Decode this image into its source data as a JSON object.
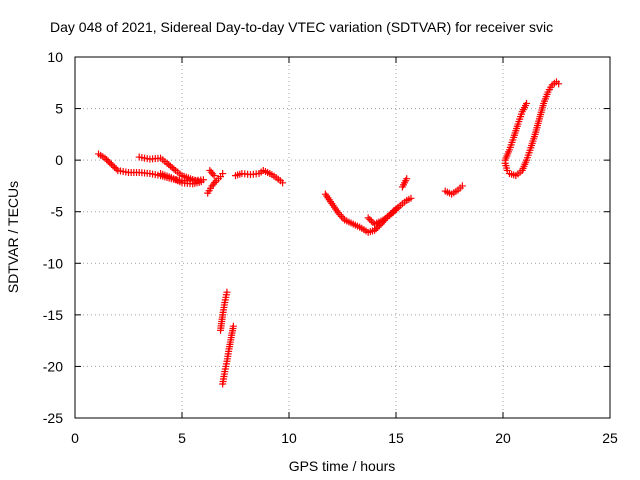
{
  "chart_data": {
    "type": "scatter",
    "title": "Day 048 of 2021, Sidereal Day-to-day VTEC variation (SDTVAR) for receiver svic",
    "xlabel": "GPS time / hours",
    "ylabel": "SDTVAR / TECUs",
    "xlim": [
      0,
      25
    ],
    "ylim": [
      -25,
      10
    ],
    "xticks": [
      "0",
      "5",
      "10",
      "15",
      "20",
      "25"
    ],
    "yticks": [
      "10",
      "5",
      "0",
      "-5",
      "-10",
      "-15",
      "-20",
      "-25"
    ],
    "grid": true,
    "marker": "+",
    "color": "#ff0000",
    "series": [
      {
        "points": [
          [
            1.1,
            0.6
          ],
          [
            1.4,
            0.2
          ],
          [
            1.7,
            -0.4
          ],
          [
            2.0,
            -1.0
          ],
          [
            2.5,
            -1.2
          ],
          [
            3.0,
            -1.2
          ],
          [
            3.5,
            -1.3
          ],
          [
            4.0,
            -1.5
          ],
          [
            4.5,
            -1.8
          ],
          [
            5.0,
            -2.0
          ],
          [
            5.5,
            -2.0
          ],
          [
            6.0,
            -1.9
          ]
        ]
      },
      {
        "points": [
          [
            3.0,
            0.3
          ],
          [
            3.5,
            0.1
          ],
          [
            4.0,
            0.2
          ],
          [
            4.3,
            -0.3
          ],
          [
            4.7,
            -1.0
          ],
          [
            5.0,
            -1.5
          ],
          [
            5.4,
            -1.8
          ],
          [
            5.8,
            -2.1
          ]
        ]
      },
      {
        "points": [
          [
            4.0,
            -1.3
          ],
          [
            4.5,
            -1.7
          ],
          [
            5.0,
            -2.2
          ],
          [
            5.5,
            -2.3
          ],
          [
            5.9,
            -2.1
          ]
        ]
      },
      {
        "points": [
          [
            6.2,
            -3.2
          ],
          [
            6.4,
            -2.5
          ],
          [
            6.6,
            -2.0
          ],
          [
            6.8,
            -1.6
          ],
          [
            6.9,
            -1.3
          ]
        ]
      },
      {
        "points": [
          [
            6.3,
            -1.0
          ],
          [
            6.5,
            -1.5
          ]
        ]
      },
      {
        "points": [
          [
            7.5,
            -1.5
          ],
          [
            7.8,
            -1.3
          ],
          [
            8.2,
            -1.4
          ],
          [
            8.6,
            -1.3
          ],
          [
            8.8,
            -1.0
          ],
          [
            9.2,
            -1.4
          ],
          [
            9.6,
            -2.0
          ],
          [
            9.7,
            -2.2
          ]
        ]
      },
      {
        "points": [
          [
            6.8,
            -16.5
          ],
          [
            6.9,
            -15.0
          ],
          [
            7.0,
            -13.8
          ],
          [
            7.1,
            -12.8
          ]
        ]
      },
      {
        "points": [
          [
            6.9,
            -21.7
          ],
          [
            7.0,
            -20.5
          ],
          [
            7.1,
            -19.5
          ],
          [
            7.2,
            -18.3
          ],
          [
            7.3,
            -17.2
          ],
          [
            7.4,
            -16.1
          ]
        ]
      },
      {
        "points": [
          [
            11.7,
            -3.3
          ],
          [
            12.0,
            -4.2
          ],
          [
            12.3,
            -5.1
          ],
          [
            12.6,
            -5.8
          ],
          [
            13.0,
            -6.2
          ],
          [
            13.4,
            -6.6
          ],
          [
            13.7,
            -7.0
          ],
          [
            14.0,
            -6.8
          ],
          [
            14.3,
            -6.2
          ],
          [
            14.6,
            -5.5
          ],
          [
            14.9,
            -4.9
          ],
          [
            15.2,
            -4.4
          ],
          [
            15.5,
            -3.9
          ],
          [
            15.7,
            -3.7
          ]
        ]
      },
      {
        "points": [
          [
            13.7,
            -5.6
          ],
          [
            14.0,
            -6.2
          ],
          [
            14.4,
            -5.8
          ],
          [
            14.8,
            -5.2
          ],
          [
            15.1,
            -4.6
          ]
        ]
      },
      {
        "points": [
          [
            15.3,
            -2.6
          ],
          [
            15.5,
            -1.8
          ]
        ]
      },
      {
        "points": [
          [
            17.3,
            -3.0
          ],
          [
            17.6,
            -3.3
          ],
          [
            17.9,
            -2.9
          ],
          [
            18.1,
            -2.5
          ]
        ]
      },
      {
        "points": [
          [
            20.1,
            -0.3
          ],
          [
            20.2,
            -1.0
          ],
          [
            20.3,
            -1.3
          ],
          [
            20.6,
            -1.5
          ],
          [
            20.9,
            -1.0
          ],
          [
            21.1,
            0.0
          ],
          [
            21.3,
            1.2
          ],
          [
            21.5,
            2.5
          ],
          [
            21.7,
            4.0
          ],
          [
            21.9,
            5.5
          ],
          [
            22.1,
            6.6
          ],
          [
            22.3,
            7.3
          ],
          [
            22.5,
            7.6
          ],
          [
            22.6,
            7.4
          ]
        ]
      },
      {
        "points": [
          [
            20.1,
            0.0
          ],
          [
            20.3,
            1.0
          ],
          [
            20.5,
            2.2
          ],
          [
            20.7,
            3.5
          ],
          [
            20.9,
            4.7
          ],
          [
            21.1,
            5.5
          ]
        ]
      }
    ]
  }
}
